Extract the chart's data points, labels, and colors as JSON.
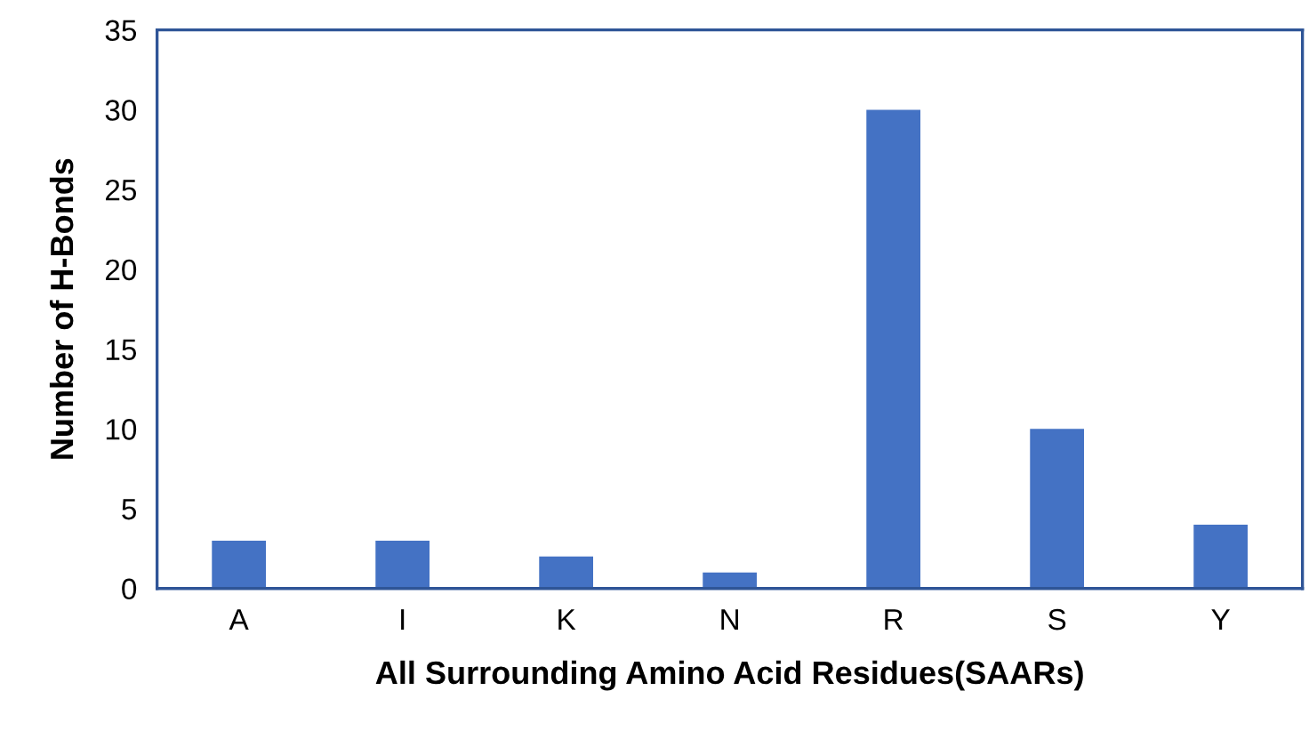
{
  "chart_data": {
    "type": "bar",
    "xlabel": "All Surrounding Amino Acid Residues(SAARs)",
    "ylabel": "Number of H-Bonds",
    "categories": [
      "A",
      "I",
      "K",
      "N",
      "R",
      "S",
      "Y"
    ],
    "values": [
      3,
      3,
      2,
      1,
      30,
      10,
      4
    ],
    "color": "#4472c4",
    "ylim": [
      0,
      35
    ],
    "yticks": [
      0,
      5,
      10,
      15,
      20,
      25,
      30,
      35
    ],
    "grid": false,
    "legend": false
  }
}
